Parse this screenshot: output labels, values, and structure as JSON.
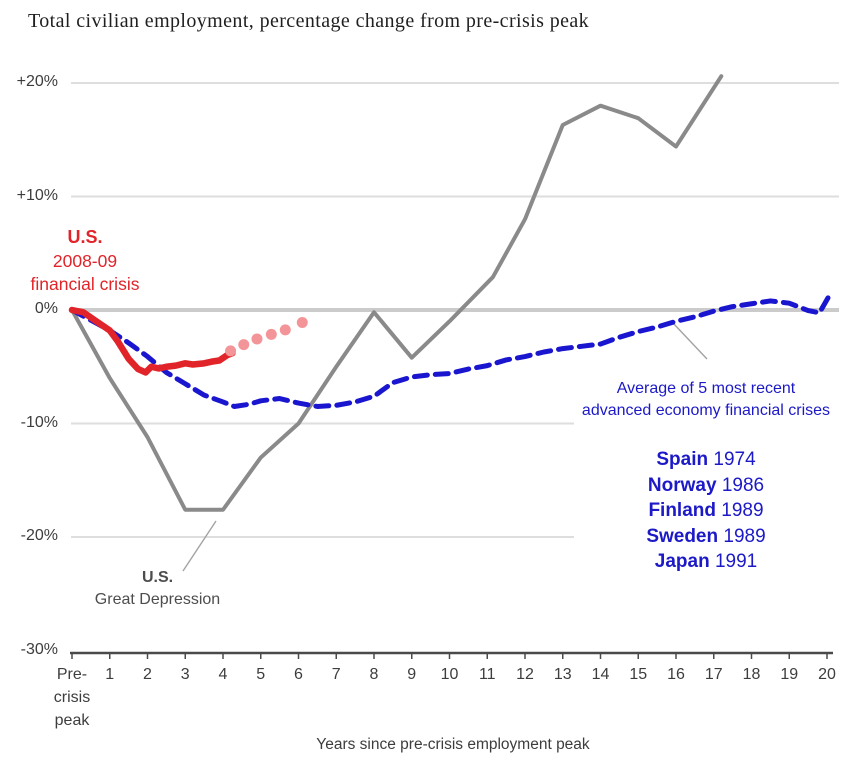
{
  "title": "Total civilian employment, percentage change from pre-crisis peak",
  "chart_data": {
    "type": "line",
    "title": "Total civilian employment, percentage change from pre-crisis peak",
    "xlabel": "Years since pre-crisis employment peak",
    "ylabel": "",
    "xlim": [
      0,
      20
    ],
    "ylim": [
      -30,
      22
    ],
    "grid": "horizontal",
    "x_axis": {
      "tick_labels": [
        "Pre-\ncrisis\npeak",
        "1",
        "2",
        "3",
        "4",
        "5",
        "6",
        "7",
        "8",
        "9",
        "10",
        "11",
        "12",
        "13",
        "14",
        "15",
        "16",
        "17",
        "18",
        "19",
        "20"
      ],
      "tick_values": [
        0,
        1,
        2,
        3,
        4,
        5,
        6,
        7,
        8,
        9,
        10,
        11,
        12,
        13,
        14,
        15,
        16,
        17,
        18,
        19,
        20
      ]
    },
    "y_axis": {
      "tick_labels": [
        "+20%",
        "+10%",
        "0%",
        "-10%",
        "-20%",
        "-30%"
      ],
      "tick_values": [
        20,
        10,
        0,
        -10,
        -20,
        -30
      ]
    },
    "series": [
      {
        "key": "great_depression",
        "name": "U.S. Great Depression",
        "style": "solid",
        "color": "#8a8a8a",
        "points": [
          [
            0,
            0
          ],
          [
            1,
            -6
          ],
          [
            2,
            -11.2
          ],
          [
            3,
            -17.6
          ],
          [
            4,
            -17.6
          ],
          [
            5,
            -13
          ],
          [
            6,
            -10
          ],
          [
            7,
            -5
          ],
          [
            8,
            -0.2
          ],
          [
            9,
            -4.2
          ],
          [
            10,
            -1
          ],
          [
            11.15,
            2.9
          ],
          [
            12,
            8
          ],
          [
            13,
            16.3
          ],
          [
            14,
            18
          ],
          [
            15,
            16.9
          ],
          [
            16,
            14.4
          ],
          [
            17.2,
            20.6
          ]
        ]
      },
      {
        "key": "avg5",
        "name": "Average of 5 most recent advanced economy financial crises",
        "style": "dashed",
        "color": "#1a16cf",
        "points": [
          [
            0,
            0
          ],
          [
            0.5,
            -0.9
          ],
          [
            1,
            -1.8
          ],
          [
            1.5,
            -2.9
          ],
          [
            2,
            -4.1
          ],
          [
            2.5,
            -5.5
          ],
          [
            3,
            -6.5
          ],
          [
            3.5,
            -7.5
          ],
          [
            4,
            -8.1
          ],
          [
            4.3,
            -8.5
          ],
          [
            4.7,
            -8.3
          ],
          [
            5,
            -8.0
          ],
          [
            5.5,
            -7.8
          ],
          [
            6,
            -8.2
          ],
          [
            6.5,
            -8.5
          ],
          [
            7,
            -8.4
          ],
          [
            7.5,
            -8.1
          ],
          [
            8,
            -7.6
          ],
          [
            8.5,
            -6.4
          ],
          [
            9,
            -5.9
          ],
          [
            9.5,
            -5.7
          ],
          [
            10,
            -5.6
          ],
          [
            10.5,
            -5.2
          ],
          [
            11,
            -4.9
          ],
          [
            11.5,
            -4.4
          ],
          [
            12,
            -4.1
          ],
          [
            12.5,
            -3.7
          ],
          [
            13,
            -3.4
          ],
          [
            13.5,
            -3.2
          ],
          [
            14,
            -3.0
          ],
          [
            14.5,
            -2.4
          ],
          [
            15,
            -1.9
          ],
          [
            15.5,
            -1.5
          ],
          [
            16,
            -1.0
          ],
          [
            16.5,
            -0.6
          ],
          [
            17,
            -0.1
          ],
          [
            17.5,
            0.3
          ],
          [
            18,
            0.55
          ],
          [
            18.5,
            0.8
          ],
          [
            19,
            0.6
          ],
          [
            19.5,
            -0.05
          ],
          [
            19.8,
            -0.25
          ],
          [
            20.1,
            1.5
          ]
        ]
      },
      {
        "key": "us_2008",
        "name": "U.S. 2008-09 financial crisis",
        "style": "solid",
        "color": "#e02429",
        "points": [
          [
            0,
            0
          ],
          [
            0.3,
            -0.2
          ],
          [
            0.6,
            -0.9
          ],
          [
            1,
            -1.8
          ],
          [
            1.2,
            -2.7
          ],
          [
            1.5,
            -4.3
          ],
          [
            1.75,
            -5.2
          ],
          [
            1.95,
            -5.5
          ],
          [
            2.1,
            -5.0
          ],
          [
            2.3,
            -5.15
          ],
          [
            2.5,
            -5.0
          ],
          [
            2.75,
            -4.9
          ],
          [
            3,
            -4.7
          ],
          [
            3.2,
            -4.8
          ],
          [
            3.5,
            -4.7
          ],
          [
            3.7,
            -4.55
          ],
          [
            3.9,
            -4.45
          ],
          [
            4.1,
            -4.0
          ],
          [
            4.25,
            -3.8
          ]
        ]
      },
      {
        "key": "us_2008_projection",
        "name": "U.S. 2008-09 projection (dots)",
        "style": "dots",
        "color": "#f39598",
        "points": [
          [
            4.2,
            -3.6
          ],
          [
            4.55,
            -3.05
          ],
          [
            4.9,
            -2.55
          ],
          [
            5.28,
            -2.15
          ],
          [
            5.65,
            -1.75
          ],
          [
            6.1,
            -1.1
          ]
        ]
      }
    ],
    "annotations": {
      "us_2008": {
        "line1": "U.S.",
        "line2": "2008-09",
        "line3": "financial crisis"
      },
      "great_depression": {
        "line1": "U.S.",
        "line2": "Great Depression"
      },
      "average": {
        "line1": "Average of 5 most recent",
        "line2": "advanced economy financial crises"
      }
    },
    "legend": [
      {
        "country": "Spain",
        "year": "1974"
      },
      {
        "country": "Norway",
        "year": "1986"
      },
      {
        "country": "Finland",
        "year": "1989"
      },
      {
        "country": "Sweden",
        "year": "1989"
      },
      {
        "country": "Japan",
        "year": "1991"
      }
    ],
    "colors": {
      "red_line": "#e02429",
      "pink_dots": "#f39598",
      "blue_line": "#1a16cf",
      "blue_text": "#1c19c7",
      "gray_line": "#8a8a8a",
      "gridline": "#dedede",
      "zero_line": "#cbcbcb",
      "axis": "#4a4a4a",
      "leader": "#a3a3a3"
    }
  }
}
